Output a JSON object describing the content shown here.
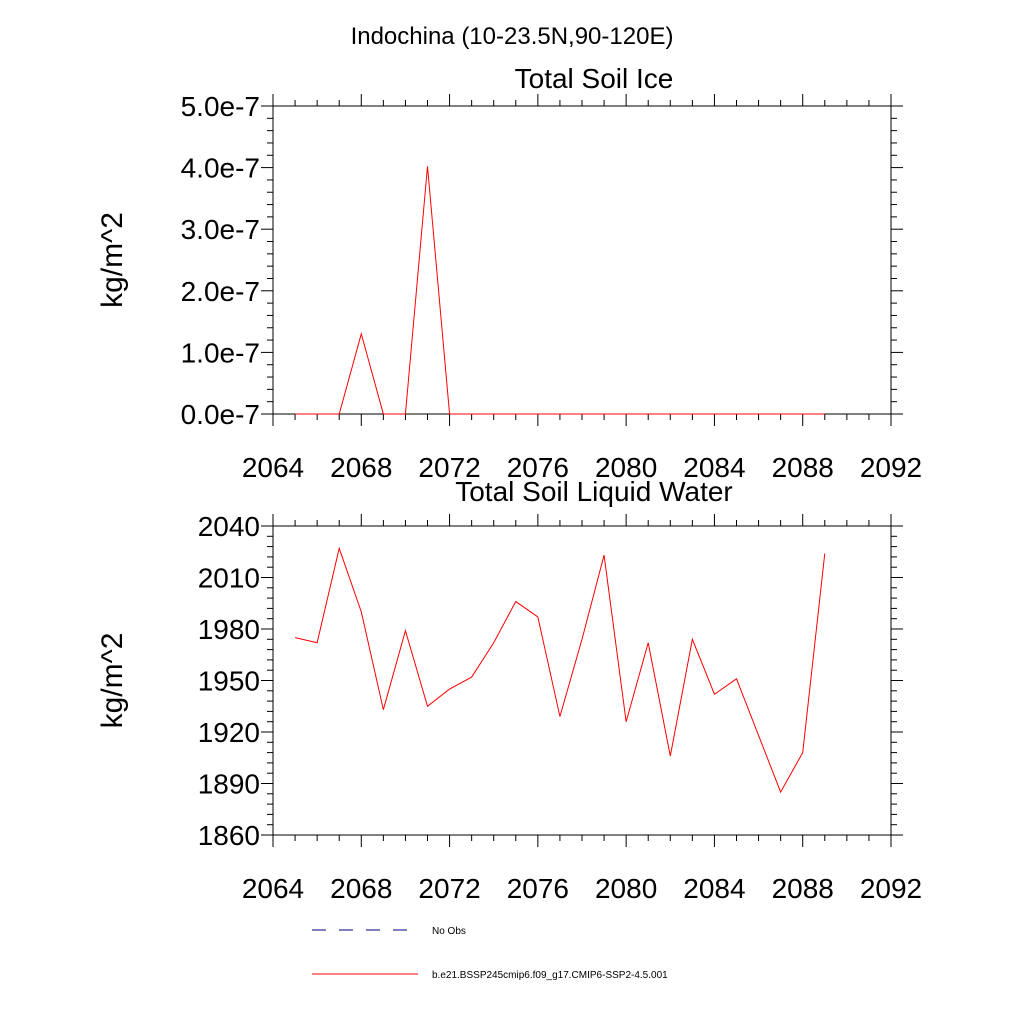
{
  "figure": {
    "title": "Indochina (10-23.5N,90-120E)"
  },
  "colors": {
    "model": "#ff0000",
    "obs": "#000080",
    "axes": "#000000"
  },
  "chart_data": [
    {
      "type": "line",
      "title": "Total Soil Ice",
      "xlabel": "",
      "ylabel": "kg/m^2",
      "xlim": [
        2064,
        2092
      ],
      "ylim": [
        0,
        5e-07
      ],
      "x_ticks": [
        2064,
        2068,
        2072,
        2076,
        2080,
        2084,
        2088,
        2092
      ],
      "x_tick_labels": [
        "2064",
        "2068",
        "2072",
        "2076",
        "2080",
        "2084",
        "2088",
        "2092"
      ],
      "y_ticks": [
        0,
        1e-07,
        2e-07,
        3e-07,
        4e-07,
        5e-07
      ],
      "y_tick_labels": [
        "0.0e-7",
        "1.0e-7",
        "2.0e-7",
        "3.0e-7",
        "4.0e-7",
        "5.0e-7"
      ],
      "grid": false,
      "series": [
        {
          "name": "b.e21.BSSP245cmip6.f09_g17.CMIP6-SSP2-4.5.001",
          "x": [
            2065,
            2066,
            2067,
            2068,
            2069,
            2070,
            2071,
            2072,
            2073,
            2074,
            2075,
            2076,
            2077,
            2078,
            2079,
            2080,
            2081,
            2082,
            2083,
            2084,
            2085,
            2086,
            2087,
            2088,
            2089
          ],
          "y": [
            0,
            0,
            0,
            1.3e-07,
            0,
            0,
            4.02e-07,
            0,
            0,
            0,
            0,
            0,
            0,
            0,
            0,
            0,
            0,
            0,
            0,
            0,
            0,
            0,
            0,
            0,
            0
          ]
        }
      ]
    },
    {
      "type": "line",
      "title": "Total Soil Liquid Water",
      "xlabel": "",
      "ylabel": "kg/m^2",
      "xlim": [
        2064,
        2092
      ],
      "ylim": [
        1860,
        2040
      ],
      "x_ticks": [
        2064,
        2068,
        2072,
        2076,
        2080,
        2084,
        2088,
        2092
      ],
      "x_tick_labels": [
        "2064",
        "2068",
        "2072",
        "2076",
        "2080",
        "2084",
        "2088",
        "2092"
      ],
      "y_ticks": [
        1860,
        1890,
        1920,
        1950,
        1980,
        2010,
        2040
      ],
      "y_tick_labels": [
        "1860",
        "1890",
        "1920",
        "1950",
        "1980",
        "2010",
        "2040"
      ],
      "grid": false,
      "series": [
        {
          "name": "b.e21.BSSP245cmip6.f09_g17.CMIP6-SSP2-4.5.001",
          "x": [
            2065,
            2066,
            2067,
            2068,
            2069,
            2070,
            2071,
            2072,
            2073,
            2074,
            2075,
            2076,
            2077,
            2078,
            2079,
            2080,
            2081,
            2082,
            2083,
            2084,
            2085,
            2086,
            2087,
            2088,
            2089
          ],
          "y": [
            1975,
            1972,
            2027,
            1990,
            1933,
            1979,
            1935,
            1945,
            1952,
            1972,
            1996,
            1987,
            1929,
            1974,
            2023,
            1926,
            1972,
            1906,
            1974,
            1942,
            1951,
            1918,
            1885,
            1908,
            2024
          ]
        }
      ]
    }
  ],
  "legend": {
    "placement": "bottom",
    "entries": [
      {
        "label": "No Obs",
        "style": "dashed",
        "color": "#000080"
      },
      {
        "label": "b.e21.BSSP245cmip6.f09_g17.CMIP6-SSP2-4.5.001",
        "style": "solid",
        "color": "#ff0000"
      }
    ]
  }
}
